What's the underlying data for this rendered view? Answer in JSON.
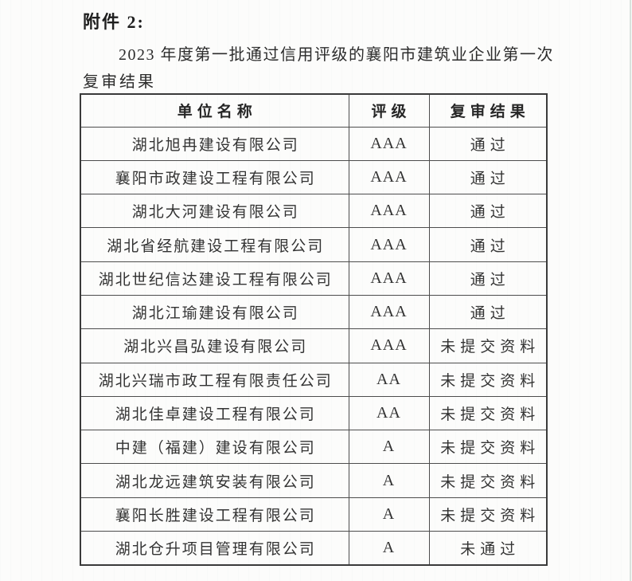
{
  "page": {
    "attachment_label": "附件 2:",
    "title_lines": [
      "2023 年度第一批通过信用评级的襄阳市建筑业企业第一次",
      "复审结果"
    ]
  },
  "table": {
    "headers": [
      "单位名称",
      "评级",
      "复审结果"
    ],
    "rows": [
      {
        "name": "湖北旭冉建设有限公司",
        "rating": "AAA",
        "result": "通过"
      },
      {
        "name": "襄阳市政建设工程有限公司",
        "rating": "AAA",
        "result": "通过"
      },
      {
        "name": "湖北大河建设有限公司",
        "rating": "AAA",
        "result": "通过"
      },
      {
        "name": "湖北省经航建设工程有限公司",
        "rating": "AAA",
        "result": "通过"
      },
      {
        "name": "湖北世纪信达建设工程有限公司",
        "rating": "AAA",
        "result": "通过"
      },
      {
        "name": "湖北江瑜建设有限公司",
        "rating": "AAA",
        "result": "通过"
      },
      {
        "name": "湖北兴昌弘建设有限公司",
        "rating": "AAA",
        "result": "未提交资料"
      },
      {
        "name": "湖北兴瑞市政工程有限责任公司",
        "rating": "AA",
        "result": "未提交资料"
      },
      {
        "name": "湖北佳卓建设工程有限公司",
        "rating": "AA",
        "result": "未提交资料"
      },
      {
        "name": "中建（福建）建设有限公司",
        "rating": "A",
        "result": "未提交资料"
      },
      {
        "name": "湖北龙远建筑安装有限公司",
        "rating": "A",
        "result": "未提交资料"
      },
      {
        "name": "襄阳长胜建设工程有限公司",
        "rating": "A",
        "result": "未提交资料"
      },
      {
        "name": "湖北仓升项目管理有限公司",
        "rating": "A",
        "result": "未通过"
      }
    ]
  },
  "colors": {
    "page_background": "#fcfcfb",
    "text": "#2f2f2f",
    "table_border": "#3a3a3a",
    "scan_edge_line": "#d9e2dd"
  }
}
